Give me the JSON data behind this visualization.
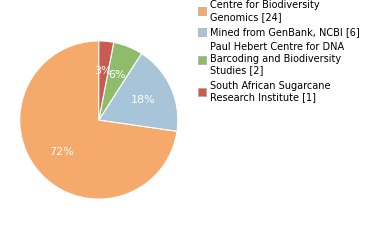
{
  "slices": [
    72,
    18,
    6,
    3
  ],
  "labels": [
    "72%",
    "18%",
    "6%",
    "3%"
  ],
  "colors": [
    "#F5A96B",
    "#A8C4D8",
    "#8FBC6A",
    "#C95B50"
  ],
  "legend_labels": [
    "Centre for Biodiversity\nGenomics [24]",
    "Mined from GenBank, NCBI [6]",
    "Paul Hebert Centre for DNA\nBarcoding and Biodiversity\nStudies [2]",
    "South African Sugarcane\nResearch Institute [1]"
  ],
  "legend_colors": [
    "#F5A96B",
    "#A8C4D8",
    "#8FBC6A",
    "#C95B50"
  ],
  "startangle": 90,
  "pctdistance": 0.62,
  "label_fontsize": 8,
  "legend_fontsize": 7,
  "background_color": "#ffffff"
}
